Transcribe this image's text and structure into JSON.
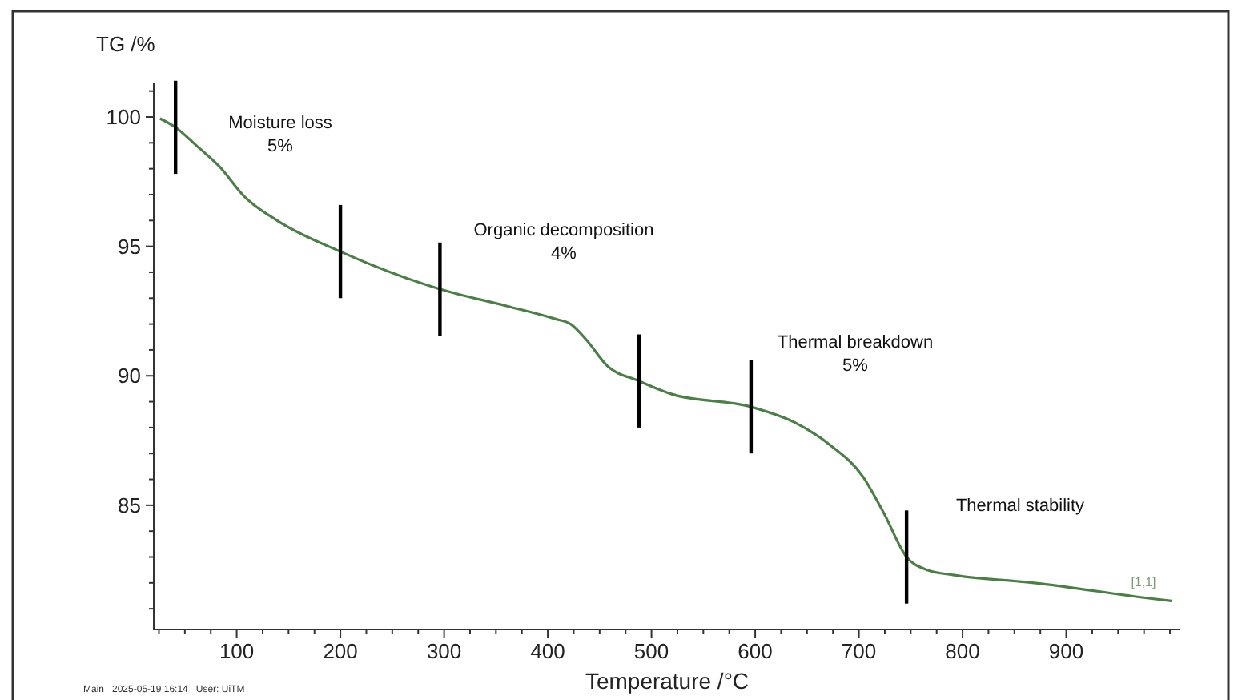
{
  "chart_data": {
    "type": "line",
    "xlabel": "Temperature /°C",
    "ylabel": "TG /%",
    "xlim": [
      20,
      1010
    ],
    "ylim": [
      80.2,
      101.3
    ],
    "xticks": [
      {
        "value": 25,
        "label": null
      },
      {
        "value": 50,
        "label": null
      },
      {
        "value": 75,
        "label": null
      },
      100,
      {
        "value": 125,
        "label": null
      },
      {
        "value": 150,
        "label": null
      },
      {
        "value": 175,
        "label": null
      },
      200,
      {
        "value": 225,
        "label": null
      },
      {
        "value": 250,
        "label": null
      },
      {
        "value": 275,
        "label": null
      },
      300,
      {
        "value": 325,
        "label": null
      },
      {
        "value": 350,
        "label": null
      },
      {
        "value": 375,
        "label": null
      },
      400,
      {
        "value": 425,
        "label": null
      },
      {
        "value": 450,
        "label": null
      },
      {
        "value": 475,
        "label": null
      },
      500,
      {
        "value": 525,
        "label": null
      },
      {
        "value": 550,
        "label": null
      },
      {
        "value": 575,
        "label": null
      },
      600,
      {
        "value": 625,
        "label": null
      },
      {
        "value": 650,
        "label": null
      },
      {
        "value": 675,
        "label": null
      },
      700,
      {
        "value": 725,
        "label": null
      },
      {
        "value": 750,
        "label": null
      },
      {
        "value": 775,
        "label": null
      },
      800,
      {
        "value": 825,
        "label": null
      },
      {
        "value": 850,
        "label": null
      },
      {
        "value": 875,
        "label": null
      },
      900,
      {
        "value": 925,
        "label": null
      },
      {
        "value": 950,
        "label": null
      },
      {
        "value": 975,
        "label": null
      },
      {
        "value": 1000,
        "label": null
      }
    ],
    "yticks": [
      {
        "value": 81,
        "label": null
      },
      {
        "value": 82,
        "label": null
      },
      {
        "value": 83,
        "label": null
      },
      {
        "value": 84,
        "label": null
      },
      85,
      {
        "value": 86,
        "label": null
      },
      {
        "value": 87,
        "label": null
      },
      {
        "value": 88,
        "label": null
      },
      {
        "value": 89,
        "label": null
      },
      90,
      {
        "value": 91,
        "label": null
      },
      {
        "value": 92,
        "label": null
      },
      {
        "value": 93,
        "label": null
      },
      {
        "value": 94,
        "label": null
      },
      95,
      {
        "value": 96,
        "label": null
      },
      {
        "value": 97,
        "label": null
      },
      {
        "value": 98,
        "label": null
      },
      {
        "value": 99,
        "label": null
      },
      100,
      {
        "value": 101,
        "label": null
      }
    ],
    "grid": false,
    "marker": "none",
    "line_style": "solid",
    "series": [
      {
        "color": "#4a7f45",
        "x": [
          26,
          41,
          61,
          83,
          108,
          139,
          200,
          262,
          296,
          360,
          407,
          422,
          437,
          457,
          488,
          519,
          596,
          638,
          673,
          704,
          724,
          746,
          766,
          792,
          869,
          981,
          1002
        ],
        "values": [
          99.94,
          99.6,
          98.9,
          98.1,
          96.9,
          96.0,
          94.8,
          93.8,
          93.35,
          92.7,
          92.2,
          92.0,
          91.4,
          90.4,
          89.8,
          89.3,
          88.8,
          88.2,
          87.3,
          86.1,
          84.7,
          83.0,
          82.5,
          82.3,
          82.0,
          81.4,
          81.3
        ]
      }
    ],
    "ref_lines": [
      {
        "axis": "x",
        "value": 41,
        "color": "#000000"
      },
      {
        "axis": "x",
        "value": 200,
        "color": "#000000"
      },
      {
        "axis": "x",
        "value": 296,
        "color": "#000000"
      },
      {
        "axis": "x",
        "value": 488,
        "color": "#000000"
      },
      {
        "axis": "x",
        "value": 596,
        "color": "#000000"
      },
      {
        "axis": "x",
        "value": 746,
        "color": "#000000"
      }
    ],
    "annotations": [
      "Moisture loss\n5%",
      "Organic decomposition\n4%",
      "Thermal breakdown\n5%",
      "Thermal stability",
      "[1,1]",
      "Main   2025-05-19 16:14   User: UiTM"
    ]
  }
}
